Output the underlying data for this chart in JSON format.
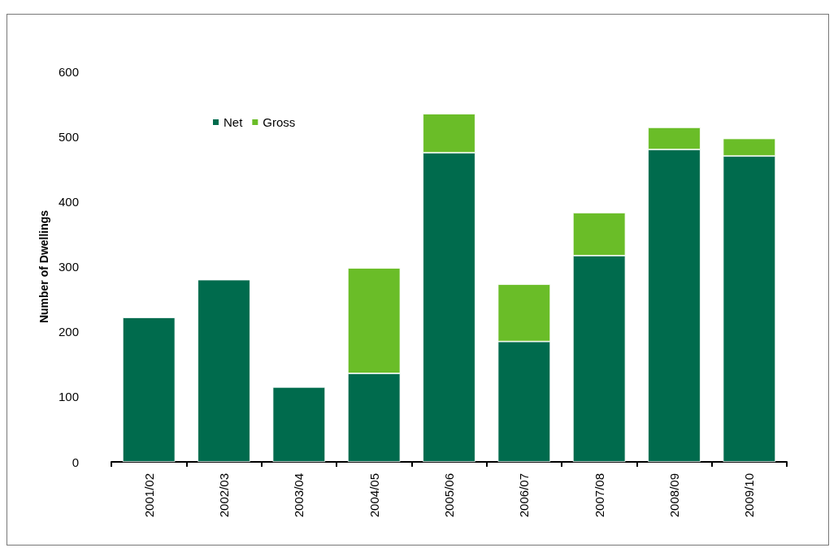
{
  "chart_data": {
    "type": "bar",
    "stacked": true,
    "ylabel": "Number of Dwellings",
    "categories": [
      "2001/02",
      "2002/03",
      "2003/04",
      "2004/05",
      "2005/06",
      "2006/07",
      "2007/08",
      "2008/09",
      "2009/10"
    ],
    "series": [
      {
        "name": "Net",
        "color": "#006b4d",
        "values": [
          222,
          280,
          115,
          136,
          475,
          185,
          317,
          480,
          470
        ]
      },
      {
        "name": "Gross",
        "color": "#6abd28",
        "values": [
          null,
          null,
          null,
          162,
          60,
          88,
          66,
          34,
          27
        ]
      }
    ],
    "ylim": [
      0,
      600
    ],
    "yticks": [
      0,
      100,
      200,
      300,
      400,
      500,
      600
    ],
    "grid": false,
    "legend": "top left"
  }
}
